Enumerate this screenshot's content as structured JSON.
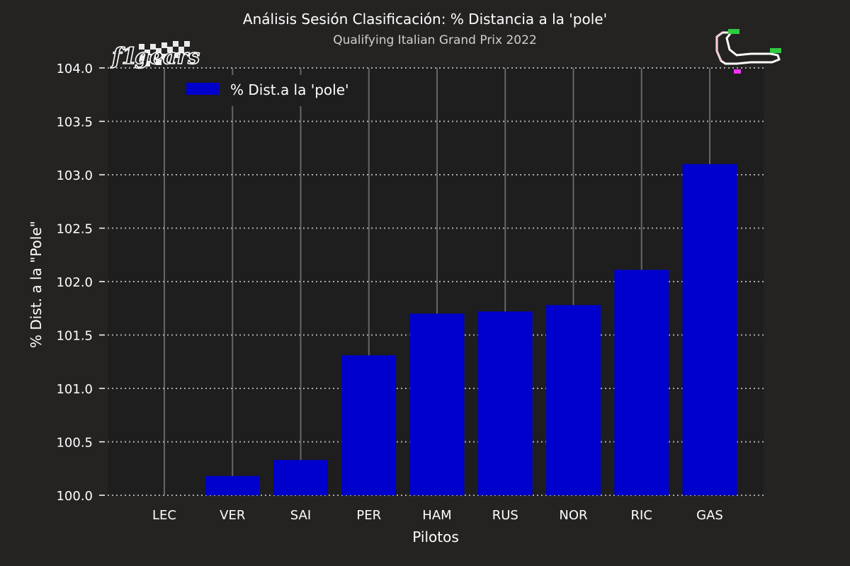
{
  "chart_data": {
    "type": "bar",
    "title": "Análisis Sesión Clasificación: % Distancia a la 'pole'",
    "subtitle": "Qualifying Italian Grand Prix 2022",
    "xlabel": "Pilotos",
    "ylabel": "% Dist. a la \"Pole\"",
    "categories": [
      "LEC",
      "VER",
      "SAI",
      "PER",
      "HAM",
      "RUS",
      "NOR",
      "RIC",
      "GAS"
    ],
    "series": [
      {
        "name": "% Dist.a la 'pole'",
        "values": [
          100.0,
          100.18,
          100.33,
          101.31,
          101.7,
          101.72,
          101.78,
          102.11,
          103.1
        ]
      }
    ],
    "ylim": [
      100.0,
      104.0
    ],
    "yticks": [
      "100.0",
      "100.5",
      "101.0",
      "101.5",
      "102.0",
      "102.5",
      "103.0",
      "103.5",
      "104.0"
    ],
    "grid": true,
    "legend_position": "top-left",
    "colors": {
      "background": "#252322",
      "plot_background": "#1e1e1e",
      "bar": "#0000cd",
      "text": "#ffffff",
      "grid": "#aaaaaa"
    }
  },
  "branding": {
    "logo_icon": "f1gears-logo-icon",
    "track_icon": "monza-track-map-icon"
  }
}
